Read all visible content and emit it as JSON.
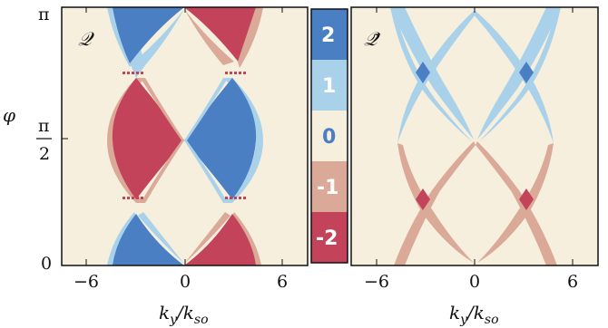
{
  "chart_data": [
    {
      "type": "heatmap",
      "panel": "Q",
      "panel_label": "𝒬",
      "x_range": [
        -7.5,
        7.5
      ],
      "y_range": [
        0,
        3.14159
      ],
      "x_ticks": [
        -6,
        0,
        6
      ],
      "x_tick_labels": [
        "−6",
        "0",
        "6"
      ],
      "y_ticks": [
        "0",
        "π/2",
        "π"
      ],
      "xlabel": "k_y/k_so",
      "ylabel": "φ",
      "regions": [
        {
          "value": 2,
          "description": "lower-left lobe",
          "x_center": -3,
          "phi_range": [
            0,
            0.7
          ]
        },
        {
          "value": -2,
          "description": "lower-right lobe",
          "x_center": 3,
          "phi_range": [
            0,
            0.7
          ]
        },
        {
          "value": -2,
          "description": "middle-left lobe",
          "x_center": -3,
          "phi_range": [
            0.8,
            2.3
          ]
        },
        {
          "value": 2,
          "description": "middle-right lobe",
          "x_center": 3,
          "phi_range": [
            0.8,
            2.3
          ]
        },
        {
          "value": 2,
          "description": "upper-left lobe",
          "x_center": -3,
          "phi_range": [
            2.4,
            3.14
          ]
        },
        {
          "value": -2,
          "description": "upper-right lobe",
          "x_center": 3,
          "phi_range": [
            2.4,
            3.14
          ]
        }
      ]
    },
    {
      "type": "heatmap",
      "panel": "Q-tilde",
      "panel_label": "𝒬̃",
      "x_range": [
        -7.5,
        7.5
      ],
      "y_range": [
        0,
        3.14159
      ],
      "x_ticks": [
        -6,
        0,
        6
      ],
      "x_tick_labels": [
        "−6",
        "0",
        "6"
      ],
      "xlabel": "k_y/k_so",
      "regions": [
        {
          "value": 1,
          "description": "upper X-shaped bands",
          "phi_range": [
            1.57,
            3.14
          ]
        },
        {
          "value": 2,
          "description": "upper crossings",
          "x_points": [
            -3.5,
            3.5
          ],
          "phi": 2.5
        },
        {
          "value": -1,
          "description": "lower X-shaped bands",
          "phi_range": [
            0,
            1.57
          ]
        },
        {
          "value": -2,
          "description": "lower crossings",
          "x_points": [
            -3.5,
            3.5
          ],
          "phi": 0.85
        }
      ]
    }
  ],
  "colorbar": {
    "labels": [
      "2",
      "1",
      "0",
      "-1",
      "-2"
    ],
    "colors": [
      "#4a7fc4",
      "#a9d2ea",
      "#f6efdd",
      "#dba998",
      "#c2435a"
    ],
    "text_colors": [
      "#ffffff",
      "#ffffff",
      "#4a7fc4",
      "#ffffff",
      "#ffffff"
    ]
  },
  "axes_text": {
    "ylabel": "φ",
    "y_ticks": [
      "π",
      "π",
      "2",
      "0"
    ],
    "xlabel_left": "k",
    "xlabel_sub_y": "y",
    "xlabel_slash": "/k",
    "xlabel_sub_so": "so"
  }
}
